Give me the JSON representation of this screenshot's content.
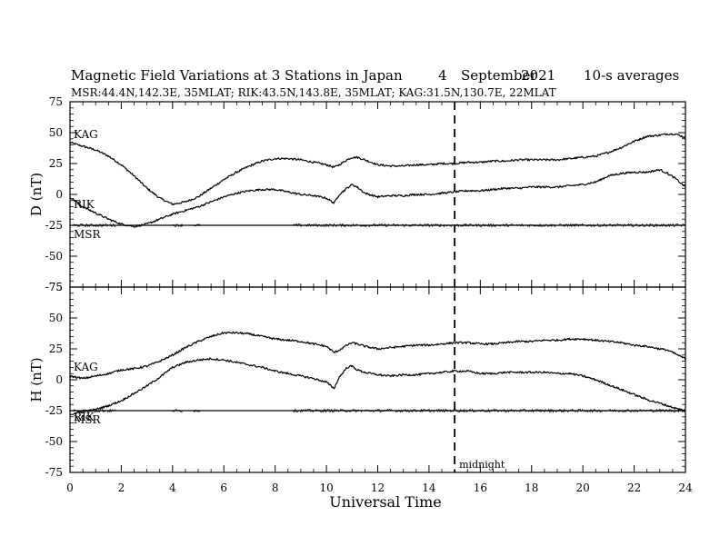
{
  "chart_data": {
    "type": "line",
    "title": {
      "main": "Magnetic Field Variations at 3 Stations in Japan",
      "day": "4",
      "month": "September",
      "year": "2021",
      "averaging": "10-s averages"
    },
    "subtitle": "MSR:44.4N,142.3E, 35MLAT;  RIK:43.5N,143.8E, 35MLAT;  KAG:31.5N,130.7E, 22MLAT",
    "xlabel": "Universal Time",
    "xlim": [
      0,
      24
    ],
    "xticks": [
      0,
      2,
      4,
      6,
      8,
      10,
      12,
      14,
      16,
      18,
      20,
      22,
      24
    ],
    "grid": false,
    "annotation": {
      "text": "midnight",
      "x": 15
    },
    "panels": [
      {
        "ylabel": "D (nT)",
        "ylim": [
          -75,
          75
        ],
        "yticks": [
          75,
          50,
          25,
          0,
          -25,
          -50,
          -75
        ],
        "series": [
          {
            "name": "KAG",
            "x": [
              0,
              0.5,
              1,
              1.5,
              2,
              2.5,
              3,
              3.5,
              4,
              4.5,
              5,
              5.5,
              6,
              6.5,
              7,
              7.5,
              8,
              8.5,
              9,
              9.5,
              10,
              10.3,
              10.5,
              10.8,
              11,
              11.2,
              11.5,
              12,
              12.5,
              13,
              13.5,
              14,
              14.5,
              15,
              15.5,
              16,
              16.5,
              17,
              17.5,
              18,
              18.5,
              19,
              19.5,
              20,
              20.5,
              21,
              21.5,
              22,
              22.5,
              23,
              23.3,
              23.6,
              24
            ],
            "y": [
              42,
              39,
              36,
              31,
              24,
              15,
              5,
              -3,
              -8,
              -6,
              -2,
              5,
              12,
              18,
              23,
              27,
              29,
              29,
              28,
              26,
              24,
              22,
              24,
              28,
              30,
              30,
              28,
              24,
              23,
              23,
              24,
              24,
              25,
              25,
              26,
              26,
              27,
              27,
              28,
              28,
              28,
              28,
              29,
              30,
              31,
              34,
              38,
              43,
              47,
              48,
              49,
              49,
              46
            ]
          },
          {
            "name": "RIK",
            "x": [
              0,
              0.5,
              1,
              1.5,
              2,
              2.5,
              3,
              3.5,
              4,
              4.5,
              5,
              5.5,
              6,
              6.5,
              7,
              7.5,
              8,
              8.5,
              9,
              9.5,
              10,
              10.3,
              10.5,
              10.8,
              11,
              11.2,
              11.5,
              12,
              12.5,
              13,
              13.5,
              14,
              14.5,
              15,
              15.5,
              16,
              16.5,
              17,
              17.5,
              18,
              18.5,
              19,
              19.5,
              20,
              20.5,
              21,
              21.5,
              22,
              22.5,
              23,
              23.3,
              23.6,
              24
            ],
            "y": [
              -2,
              -10,
              -15,
              -20,
              -24,
              -26,
              -24,
              -20,
              -16,
              -13,
              -10,
              -6,
              -2,
              1,
              3,
              4,
              4,
              2,
              0,
              -1,
              -3,
              -7,
              0,
              5,
              8,
              6,
              1,
              -2,
              -1,
              -1,
              0,
              0,
              1,
              2,
              3,
              3,
              4,
              5,
              5,
              6,
              6,
              6,
              7,
              8,
              10,
              15,
              17,
              18,
              18,
              20,
              17,
              13,
              6
            ]
          },
          {
            "name": "MSR",
            "x": [
              0,
              24
            ],
            "y": [
              -25,
              -25
            ]
          }
        ]
      },
      {
        "ylabel": "H (nT)",
        "ylim": [
          -75,
          75
        ],
        "yticks": [
          75,
          50,
          25,
          0,
          -25,
          -50,
          -75
        ],
        "series": [
          {
            "name": "KAG",
            "x": [
              0,
              0.5,
              1,
              1.5,
              2,
              2.5,
              3,
              3.5,
              4,
              4.5,
              5,
              5.5,
              6,
              6.5,
              7,
              7.5,
              8,
              8.5,
              9,
              9.5,
              10,
              10.3,
              10.5,
              10.8,
              11,
              11.2,
              11.5,
              12,
              12.5,
              13,
              13.5,
              14,
              14.5,
              15,
              15.5,
              16,
              16.5,
              17,
              17.5,
              18,
              18.5,
              19,
              19.5,
              20,
              20.5,
              21,
              21.5,
              22,
              22.5,
              23,
              23.3,
              23.6,
              24
            ],
            "y": [
              3,
              1,
              3,
              5,
              8,
              9,
              11,
              15,
              20,
              26,
              31,
              35,
              38,
              38,
              37,
              35,
              33,
              32,
              31,
              29,
              27,
              22,
              24,
              28,
              30,
              29,
              27,
              25,
              26,
              27,
              28,
              28,
              29,
              30,
              30,
              29,
              29,
              30,
              31,
              31,
              32,
              32,
              33,
              33,
              32,
              31,
              30,
              28,
              27,
              25,
              24,
              21,
              17
            ]
          },
          {
            "name": "RIK",
            "x": [
              0,
              0.5,
              1,
              1.5,
              2,
              2.5,
              3,
              3.5,
              4,
              4.5,
              5,
              5.5,
              6,
              6.5,
              7,
              7.5,
              8,
              8.5,
              9,
              9.5,
              10,
              10.3,
              10.5,
              10.8,
              11,
              11.2,
              11.5,
              12,
              12.5,
              13,
              13.5,
              14,
              14.5,
              15,
              15.5,
              16,
              16.5,
              17,
              17.5,
              18,
              18.5,
              19,
              19.5,
              20,
              20.5,
              21,
              21.5,
              22,
              22.5,
              23,
              23.3,
              23.6,
              24
            ],
            "y": [
              -28,
              -26,
              -24,
              -21,
              -17,
              -11,
              -5,
              2,
              10,
              14,
              16,
              17,
              16,
              14,
              12,
              10,
              7,
              5,
              3,
              1,
              -2,
              -7,
              2,
              10,
              11,
              8,
              6,
              4,
              3,
              4,
              4,
              5,
              6,
              7,
              7,
              5,
              5,
              6,
              6,
              6,
              6,
              5,
              5,
              3,
              0,
              -4,
              -8,
              -12,
              -16,
              -19,
              -21,
              -23,
              -25
            ]
          },
          {
            "name": "MSR",
            "x": [
              0,
              24
            ],
            "y": [
              -25,
              -25
            ]
          }
        ]
      }
    ]
  }
}
